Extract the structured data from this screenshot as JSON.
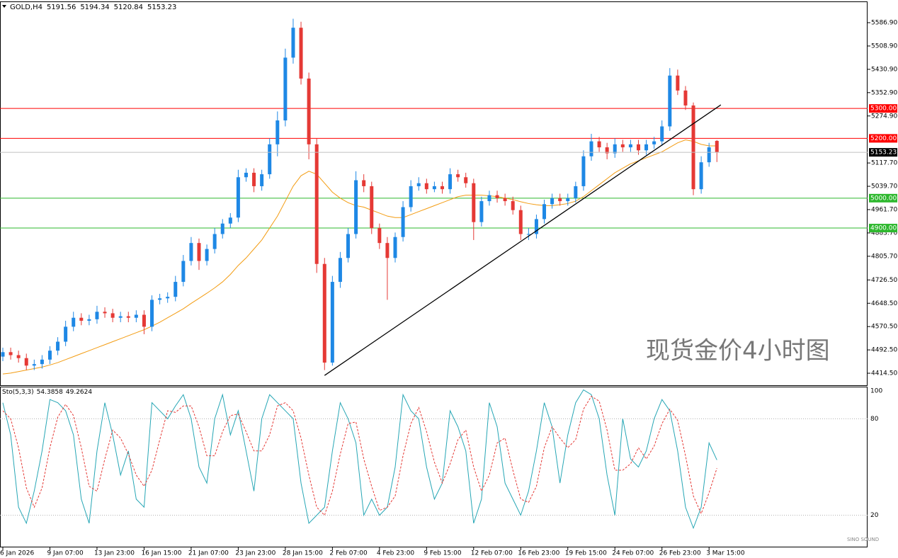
{
  "chart_data": [
    {
      "type": "candlestick",
      "title": "GOLD,H4",
      "annotation": "现货金价4小时图",
      "watermark": "SINO SOUND",
      "categories": [
        "6 Jan 2026",
        null,
        null,
        null,
        null,
        null,
        "9 Jan 07:00",
        null,
        null,
        null,
        null,
        null,
        "13 Jan 23:00",
        null,
        null,
        null,
        null,
        null,
        "16 Jan 15:00",
        null,
        null,
        null,
        null,
        null,
        "21 Jan 07:00",
        null,
        null,
        null,
        null,
        null,
        "23 Jan 23:00",
        null,
        null,
        null,
        null,
        null,
        "28 Jan 15:00",
        null,
        null,
        null,
        null,
        null,
        "2 Feb 07:00",
        null,
        null,
        null,
        null,
        null,
        "4 Feb 23:00",
        null,
        null,
        null,
        null,
        null,
        "9 Feb 15:00",
        null,
        null,
        null,
        null,
        null,
        "12 Feb 07:00",
        null,
        null,
        null,
        null,
        null,
        "16 Feb 23:00",
        null,
        null,
        null,
        null,
        null,
        "19 Feb 15:00",
        null,
        null,
        null,
        null,
        null,
        "24 Feb 07:00",
        null,
        null,
        null,
        null,
        null,
        "26 Feb 23:00",
        null,
        null,
        null,
        null,
        null,
        "3 Mar 15:00",
        null
      ],
      "open": [
        4470,
        4485,
        4475,
        4465,
        4440,
        4445,
        4460,
        4490,
        4520,
        4570,
        4600,
        4590,
        4595,
        4620,
        4615,
        4600,
        4605,
        4600,
        4610,
        4570,
        4660,
        4665,
        4670,
        4720,
        4790,
        4850,
        4790,
        4830,
        4880,
        4915,
        4935,
        5070,
        5085,
        5040,
        5080,
        5180,
        5260,
        5470,
        5570,
        5400,
        5180,
        4780,
        4450,
        4720,
        4800,
        4880,
        5060,
        5040,
        4900,
        4850,
        4800,
        4870,
        4970,
        5040,
        5050,
        5030,
        5040,
        5030,
        5080,
        5070,
        5050,
        4920,
        4990,
        5010,
        5000,
        4990,
        4960,
        4880,
        4880,
        4930,
        4980,
        5000,
        4990,
        5000,
        5040,
        5140,
        5190,
        5170,
        5150,
        5180,
        5170,
        5180,
        5160,
        5180,
        5190,
        5240,
        5410,
        5360,
        5310,
        5030,
        5120,
        5191.56
      ],
      "high": [
        4500,
        4500,
        4490,
        4480,
        4460,
        4475,
        4505,
        4535,
        4590,
        4620,
        4615,
        4610,
        4640,
        4635,
        4630,
        4620,
        4620,
        4625,
        4625,
        4675,
        4680,
        4685,
        4740,
        4810,
        4870,
        4865,
        4845,
        4900,
        4930,
        4950,
        5095,
        5100,
        5100,
        5095,
        5200,
        5290,
        5500,
        5600,
        5590,
        5420,
        5200,
        4800,
        4740,
        4820,
        4900,
        5090,
        5080,
        5055,
        4915,
        4870,
        4885,
        4990,
        5060,
        5070,
        5065,
        5055,
        5055,
        5100,
        5095,
        5085,
        5065,
        5005,
        5025,
        5025,
        5015,
        5005,
        4975,
        4900,
        4945,
        4995,
        5015,
        5015,
        5015,
        5055,
        5160,
        5215,
        5205,
        5185,
        5200,
        5195,
        5195,
        5195,
        5195,
        5205,
        5260,
        5435,
        5430,
        5375,
        5320,
        5140,
        5185,
        5194.34
      ],
      "low": [
        4455,
        4460,
        4450,
        4425,
        4425,
        4430,
        4445,
        4475,
        4505,
        4555,
        4575,
        4575,
        4580,
        4600,
        4585,
        4585,
        4585,
        4585,
        4545,
        4555,
        4645,
        4650,
        4655,
        4705,
        4775,
        4760,
        4775,
        4815,
        4865,
        4900,
        4920,
        5055,
        5020,
        5025,
        5065,
        5140,
        5240,
        5450,
        5380,
        5130,
        4750,
        4425,
        4440,
        4700,
        4785,
        4865,
        5020,
        4880,
        4830,
        4660,
        4785,
        4855,
        4955,
        5025,
        5015,
        5020,
        5015,
        5015,
        5055,
        5035,
        4860,
        4905,
        4975,
        4985,
        4975,
        4945,
        4860,
        4860,
        4865,
        4915,
        4965,
        4975,
        4975,
        4985,
        5025,
        5125,
        5155,
        5130,
        5135,
        5155,
        5155,
        5145,
        5145,
        5165,
        5175,
        5225,
        5345,
        5295,
        5010,
        5015,
        5105,
        5120.84
      ],
      "close": [
        4485,
        4475,
        4465,
        4440,
        4445,
        4460,
        4490,
        4520,
        4570,
        4600,
        4590,
        4595,
        4620,
        4615,
        4600,
        4605,
        4600,
        4610,
        4570,
        4660,
        4665,
        4670,
        4720,
        4790,
        4850,
        4790,
        4830,
        4880,
        4915,
        4935,
        5070,
        5085,
        5040,
        5080,
        5180,
        5260,
        5470,
        5570,
        5400,
        5180,
        4780,
        4450,
        4720,
        4800,
        4880,
        5060,
        5040,
        4900,
        4850,
        4800,
        4870,
        4970,
        5040,
        5050,
        5030,
        5040,
        5030,
        5080,
        5070,
        5050,
        4920,
        4990,
        5010,
        5000,
        4990,
        4960,
        4880,
        4880,
        4930,
        4980,
        5000,
        4990,
        5000,
        5040,
        5140,
        5190,
        5170,
        5150,
        5180,
        5170,
        5180,
        5160,
        5180,
        5190,
        5240,
        5410,
        5360,
        5310,
        5030,
        5120,
        5170,
        5153.23
      ],
      "up_color": "#1e88e5",
      "down_color": "#e53935",
      "series": [
        {
          "color": "#f39c12",
          "values": [
            4412,
            4415,
            4420,
            4425,
            4430,
            4435,
            4442,
            4450,
            4460,
            4470,
            4480,
            4490,
            4500,
            4510,
            4520,
            4530,
            4540,
            4550,
            4560,
            4572,
            4585,
            4600,
            4615,
            4630,
            4648,
            4665,
            4682,
            4700,
            4720,
            4745,
            4775,
            4800,
            4830,
            4860,
            4900,
            4940,
            4990,
            5040,
            5075,
            5090,
            5080,
            5050,
            5020,
            5000,
            4985,
            4975,
            4970,
            4960,
            4950,
            4940,
            4935,
            4935,
            4945,
            4955,
            4965,
            4975,
            4985,
            4995,
            5005,
            5010,
            5010,
            5010,
            5008,
            5005,
            5000,
            4995,
            4988,
            4982,
            4978,
            4975,
            4975,
            4978,
            4982,
            4990,
            5005,
            5025,
            5045,
            5065,
            5085,
            5100,
            5115,
            5125,
            5135,
            5145,
            5155,
            5170,
            5185,
            5195,
            5190,
            5180,
            5175,
            5175
          ]
        }
      ],
      "levels": [
        {
          "value": 5300,
          "label": "5300.00",
          "color": "#ff0000"
        },
        {
          "value": 5200,
          "label": "5200.00",
          "color": "#ff0000"
        },
        {
          "value": 5000,
          "label": "5000.00",
          "color": "#2eb82e"
        },
        {
          "value": 4900,
          "label": "4900.00",
          "color": "#2eb82e"
        }
      ],
      "trendline": {
        "from": {
          "index": 41,
          "price": 4407
        },
        "to": {
          "index": 91.5,
          "price": 5312
        },
        "color": "#000000"
      },
      "ylim": [
        4372,
        5658
      ],
      "yticks": [
        {
          "value": 5586.9,
          "label": "5586.90"
        },
        {
          "value": 5508.9,
          "label": "5508.90"
        },
        {
          "value": 5430.9,
          "label": "5430.90"
        },
        {
          "value": 5352.9,
          "label": "5352.90"
        },
        {
          "value": 5274.9,
          "label": "5274.90"
        },
        {
          "value": 5117.7,
          "label": "5117.70"
        },
        {
          "value": 5039.7,
          "label": "5039.70"
        },
        {
          "value": 4961.7,
          "label": "4961.70"
        },
        {
          "value": 4883.7,
          "label": "4883.70"
        },
        {
          "value": 4805.7,
          "label": "4805.70"
        },
        {
          "value": 4726.5,
          "label": "4726.50"
        },
        {
          "value": 4648.5,
          "label": "4648.50"
        },
        {
          "value": 4570.5,
          "label": "4570.50"
        },
        {
          "value": 4492.5,
          "label": "4492.50"
        },
        {
          "value": 4414.5,
          "label": "4414.50"
        }
      ]
    },
    {
      "type": "line",
      "title": "Sto(5,3,3)",
      "series": [
        {
          "color": "#26a6b5",
          "dash": false,
          "values": [
            90,
            70,
            25,
            15,
            35,
            60,
            92,
            90,
            85,
            70,
            30,
            15,
            60,
            90,
            70,
            45,
            60,
            30,
            25,
            90,
            85,
            80,
            88,
            95,
            80,
            50,
            40,
            80,
            95,
            70,
            85,
            60,
            35,
            80,
            95,
            90,
            85,
            80,
            40,
            15,
            20,
            25,
            60,
            90,
            80,
            65,
            20,
            30,
            20,
            25,
            50,
            95,
            85,
            80,
            50,
            30,
            40,
            85,
            75,
            60,
            15,
            30,
            90,
            75,
            40,
            30,
            20,
            35,
            60,
            90,
            75,
            40,
            70,
            90,
            98,
            95,
            80,
            45,
            20,
            80,
            55,
            50,
            60,
            80,
            92,
            85,
            60,
            25,
            12,
            25,
            65,
            54.3858
          ]
        },
        {
          "color": "#e53935",
          "dash": true,
          "values": [
            85,
            80,
            62,
            37,
            25,
            37,
            62,
            81,
            89,
            82,
            62,
            38,
            35,
            55,
            73,
            68,
            58,
            45,
            38,
            48,
            67,
            85,
            84,
            88,
            88,
            75,
            57,
            57,
            72,
            82,
            83,
            72,
            60,
            60,
            70,
            88,
            90,
            85,
            68,
            45,
            25,
            20,
            35,
            58,
            77,
            78,
            55,
            38,
            23,
            25,
            32,
            57,
            77,
            87,
            72,
            53,
            40,
            52,
            67,
            73,
            50,
            35,
            45,
            65,
            68,
            48,
            30,
            28,
            38,
            62,
            75,
            68,
            62,
            67,
            86,
            94,
            91,
            73,
            48,
            48,
            52,
            62,
            55,
            63,
            77,
            86,
            79,
            57,
            32,
            21,
            34,
            49.2624
          ]
        }
      ],
      "ylim": [
        0,
        100
      ],
      "yticks": [
        100,
        80,
        20
      ],
      "grid": true
    }
  ]
}
